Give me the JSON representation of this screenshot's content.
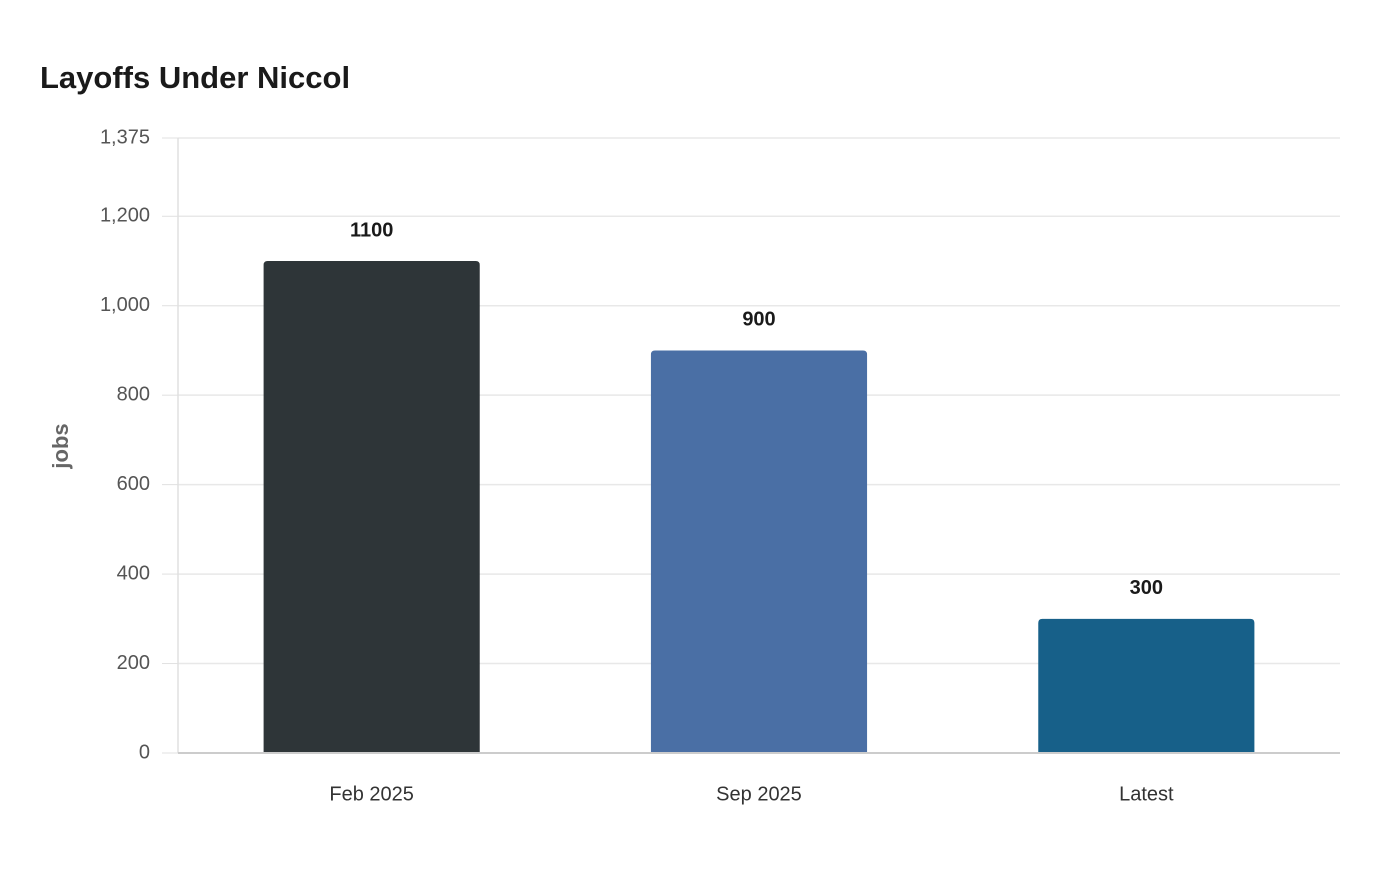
{
  "chart_data": {
    "type": "bar",
    "title": "Layoffs Under Niccol",
    "y_label": "jobs",
    "categories": [
      "Feb 2025",
      "Sep 2025",
      "Latest"
    ],
    "values": [
      1100,
      900,
      300
    ],
    "colors": [
      "#2e3538",
      "#4a6fa5",
      "#176089"
    ],
    "ylim": [
      0,
      1375
    ],
    "yticks": [
      0,
      200,
      400,
      600,
      800,
      {
        "value": 1000,
        "label": "1,000"
      },
      {
        "value": 1200,
        "label": "1,200"
      },
      {
        "value": 1375,
        "label": "1,375"
      }
    ],
    "grid": true
  }
}
